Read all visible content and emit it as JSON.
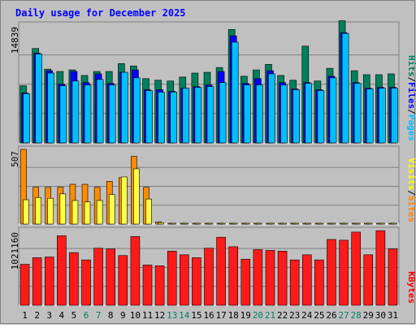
{
  "chart_data": {
    "type": "bar",
    "title": "Daily usage for December 2025",
    "days": [
      "1",
      "2",
      "3",
      "4",
      "5",
      "6",
      "7",
      "8",
      "9",
      "10",
      "11",
      "12",
      "13",
      "14",
      "15",
      "16",
      "17",
      "18",
      "19",
      "20",
      "21",
      "22",
      "23",
      "24",
      "25",
      "26",
      "27",
      "28",
      "29",
      "30",
      "31"
    ],
    "weekend_days": [
      "6",
      "7",
      "13",
      "14",
      "20",
      "21",
      "27",
      "28"
    ],
    "panels": [
      {
        "name": "top",
        "max_label": "14839",
        "ymax": 14839,
        "right_labels": [
          "Pages",
          "Files",
          "Hits"
        ],
        "label_colors": [
          "#00bfff",
          "#0000ff",
          "#008060"
        ],
        "series": [
          {
            "name": "Hits",
            "color": "#00805c",
            "values": [
              7200,
              11900,
              9300,
              9000,
              9200,
              8500,
              9000,
              9000,
              10000,
              9700,
              8100,
              7900,
              7800,
              8300,
              8800,
              8900,
              9500,
              14300,
              8400,
              9200,
              9900,
              8500,
              7900,
              12200,
              7800,
              9400,
              15400,
              9100,
              8600,
              8600,
              8700
            ]
          },
          {
            "name": "Files",
            "color": "#0000ff",
            "values": [
              6300,
              11300,
              9100,
              7400,
              9000,
              7600,
              8700,
              7500,
              8900,
              9200,
              6700,
              6700,
              6500,
              6900,
              7100,
              7300,
              9000,
              13500,
              7500,
              8100,
              9100,
              7600,
              6800,
              7600,
              6700,
              8400,
              13900,
              7600,
              6900,
              7000,
              7000
            ]
          },
          {
            "name": "Pages",
            "color": "#00bfff",
            "values": [
              6200,
              11200,
              8800,
              7200,
              7800,
              7300,
              8000,
              7300,
              8900,
              8200,
              6600,
              6400,
              6400,
              6900,
              7000,
              7100,
              7600,
              12700,
              7300,
              7300,
              8700,
              7300,
              6700,
              7500,
              6600,
              8200,
              13800,
              7500,
              6800,
              6900,
              6900
            ]
          }
        ]
      },
      {
        "name": "middle",
        "max_label": "507",
        "ymax": 507,
        "right_labels": [
          "Sites",
          "Visits"
        ],
        "label_colors": [
          "#ff8000",
          "#ffff00"
        ],
        "series": [
          {
            "name": "Sites",
            "color": "#ff8c00",
            "values": [
              507,
              250,
              250,
              250,
              270,
              270,
              250,
              290,
              315,
              460,
              250,
              15,
              4,
              4,
              4,
              4,
              4,
              4,
              4,
              4,
              4,
              4,
              4,
              4,
              4,
              4,
              4,
              4,
              4,
              4,
              4
            ]
          },
          {
            "name": "Visits",
            "color": "#ffff44",
            "values": [
              165,
              180,
              175,
              205,
              160,
              150,
              160,
              200,
              320,
              375,
              170,
              10,
              2,
              2,
              2,
              2,
              2,
              2,
              2,
              2,
              2,
              2,
              2,
              2,
              2,
              2,
              2,
              2,
              2,
              2,
              2
            ]
          }
        ]
      },
      {
        "name": "bottom",
        "max_label": "1021160",
        "ymax": 1021160,
        "right_labels": [
          "KBytes"
        ],
        "label_colors": [
          "#ff0000"
        ],
        "series": [
          {
            "name": "KBytes",
            "color": "#ff1a1a",
            "values": [
              560000,
              650000,
              660000,
              950000,
              720000,
              620000,
              780000,
              770000,
              680000,
              940000,
              550000,
              540000,
              740000,
              690000,
              650000,
              780000,
              930000,
              800000,
              630000,
              760000,
              750000,
              740000,
              620000,
              690000,
              620000,
              900000,
              890000,
              1000000,
              690000,
              1020000,
              770000
            ]
          }
        ]
      }
    ]
  }
}
